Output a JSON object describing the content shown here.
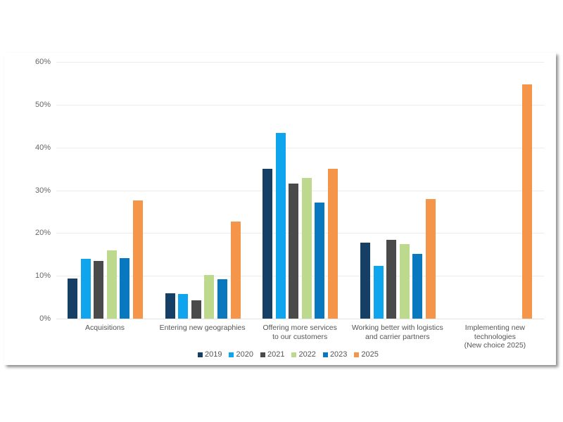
{
  "chart_data": {
    "type": "bar",
    "title": "",
    "xlabel": "",
    "ylabel": "",
    "ylim": [
      0,
      60
    ],
    "yticks": [
      "0%",
      "10%",
      "20%",
      "30%",
      "40%",
      "50%",
      "60%"
    ],
    "grid": true,
    "legend_position": "bottom",
    "categories": [
      "Acquisitions",
      "Entering new geographies",
      "Offering more services to our customers",
      "Working better with logistics and carrier partners",
      "Implementing new technologies (New choice 2025)"
    ],
    "category_lines": [
      [
        "Acquisitions"
      ],
      [
        "Entering new geographies"
      ],
      [
        "Offering more services",
        "to our customers"
      ],
      [
        "Working better with logistics",
        "and carrier partners"
      ],
      [
        "Implementing new",
        "technologies",
        "(New choice 2025)"
      ]
    ],
    "series": [
      {
        "name": "2019",
        "color": "#163f66",
        "values": [
          9.3,
          5.9,
          35.0,
          17.8,
          null
        ]
      },
      {
        "name": "2020",
        "color": "#0ea5ee",
        "values": [
          14.0,
          5.7,
          43.4,
          12.3,
          null
        ]
      },
      {
        "name": "2021",
        "color": "#4a4a4a",
        "values": [
          13.5,
          4.3,
          31.5,
          18.5,
          null
        ]
      },
      {
        "name": "2022",
        "color": "#bcd98d",
        "values": [
          16.0,
          10.2,
          32.9,
          17.4,
          null
        ]
      },
      {
        "name": "2023",
        "color": "#0a78bf",
        "values": [
          14.1,
          9.2,
          27.1,
          15.2,
          null
        ]
      },
      {
        "name": "2025",
        "color": "#f4954a",
        "values": [
          27.6,
          22.7,
          35.1,
          27.9,
          54.8
        ]
      }
    ]
  }
}
